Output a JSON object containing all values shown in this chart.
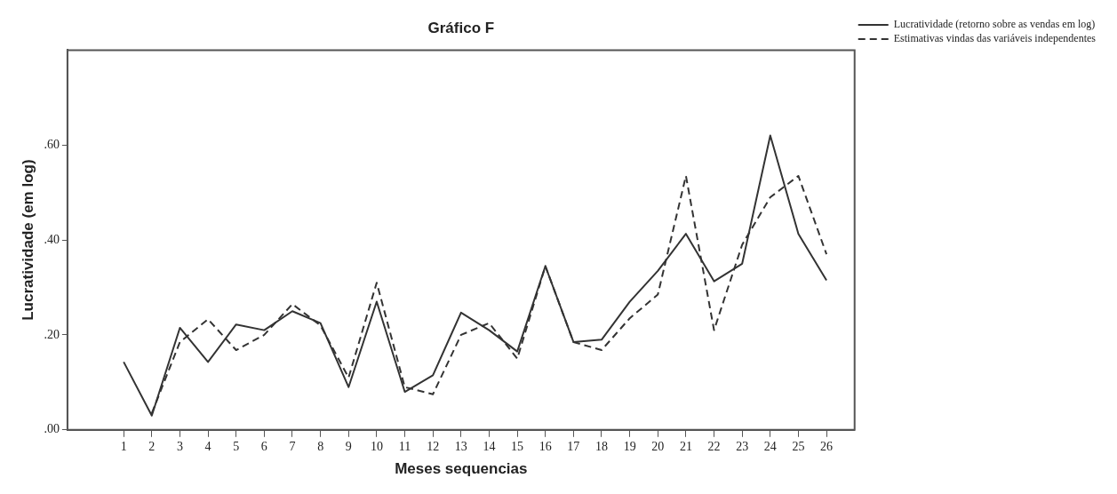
{
  "chart_data": {
    "type": "line",
    "title": "Gráfico F",
    "xlabel": "Meses sequencias",
    "ylabel": "Lucratividade (em log)",
    "x": [
      1,
      2,
      3,
      4,
      5,
      6,
      7,
      8,
      9,
      10,
      11,
      12,
      13,
      14,
      15,
      16,
      17,
      18,
      19,
      20,
      21,
      22,
      23,
      24,
      25,
      26
    ],
    "xlim": [
      -1,
      27
    ],
    "xticks": [
      1,
      2,
      3,
      4,
      5,
      6,
      7,
      8,
      9,
      10,
      11,
      12,
      13,
      14,
      15,
      16,
      17,
      18,
      19,
      20,
      21,
      22,
      23,
      24,
      25,
      26
    ],
    "ylim": [
      0,
      0.8
    ],
    "yticks": [
      {
        "value": 0,
        "label": ".00"
      },
      {
        "value": 0.2,
        "label": ".20"
      },
      {
        "value": 0.4,
        "label": ".40"
      },
      {
        "value": 0.6,
        "label": ".60"
      }
    ],
    "grid": false,
    "legend": "top right",
    "marker": "none",
    "series": [
      {
        "name": "Lucratividade (retorno sobre as vendas em log)",
        "color": "#333333",
        "line_style": "solid",
        "values": [
          0.143,
          0.03,
          0.215,
          0.143,
          0.222,
          0.21,
          0.25,
          0.225,
          0.09,
          0.27,
          0.08,
          0.115,
          0.247,
          0.21,
          0.165,
          0.345,
          0.185,
          0.19,
          0.27,
          0.335,
          0.413,
          0.313,
          0.35,
          0.62,
          0.413,
          0.315
        ]
      },
      {
        "name": "Estimativas vindas das variáveis independentes",
        "color": "#333333",
        "line_style": "dashed",
        "values": [
          null,
          0.035,
          0.185,
          0.233,
          0.168,
          0.2,
          0.265,
          0.22,
          0.11,
          0.31,
          0.09,
          0.075,
          0.2,
          0.225,
          0.15,
          0.345,
          0.185,
          0.168,
          0.235,
          0.285,
          0.535,
          0.21,
          0.39,
          0.49,
          0.535,
          0.37
        ]
      }
    ]
  }
}
